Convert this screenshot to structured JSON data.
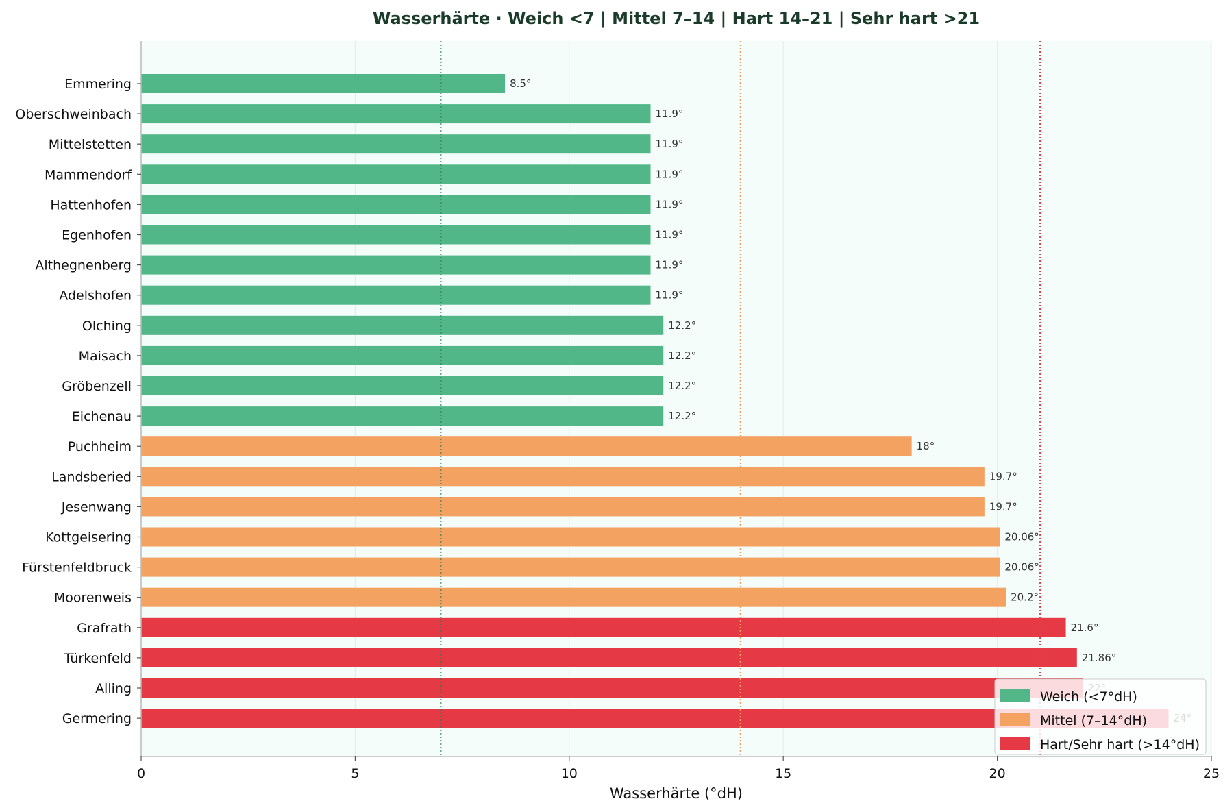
{
  "chart_data": {
    "type": "bar",
    "orientation": "horizontal",
    "title": "Wasserhärte · Weich <7 | Mittel 7–14 | Hart 14–21 | Sehr hart >21",
    "xlabel": "Wasserhärte (°dH)",
    "ylabel": "",
    "xlim": [
      0,
      25
    ],
    "xticks": [
      0,
      5,
      10,
      15,
      20,
      25
    ],
    "grid": "vertical",
    "legend_position": "bottom-right",
    "reference_lines": [
      {
        "x": 7,
        "color": "#2a7a5a"
      },
      {
        "x": 14,
        "color": "#f0a060"
      },
      {
        "x": 21,
        "color": "#e0404c"
      }
    ],
    "legend": [
      {
        "label": "Weich (<7°dH)",
        "color": "#52b788"
      },
      {
        "label": "Mittel (7–14°dH)",
        "color": "#f4a261"
      },
      {
        "label": "Hart/Sehr hart (>14°dH)",
        "color": "#e63946"
      }
    ],
    "categories": [
      "Emmering",
      "Oberschweinbach",
      "Mittelstetten",
      "Mammendorf",
      "Hattenhofen",
      "Egenhofen",
      "Althegnenberg",
      "Adelshofen",
      "Olching",
      "Maisach",
      "Gröbenzell",
      "Eichenau",
      "Puchheim",
      "Landsberied",
      "Jesenwang",
      "Kottgeisering",
      "Fürstenfeldbruck",
      "Moorenweis",
      "Grafrath",
      "Türkenfeld",
      "Alling",
      "Germering"
    ],
    "values": [
      8.5,
      11.9,
      11.9,
      11.9,
      11.9,
      11.9,
      11.9,
      11.9,
      12.2,
      12.2,
      12.2,
      12.2,
      18,
      19.7,
      19.7,
      20.06,
      20.06,
      20.2,
      21.6,
      21.86,
      22,
      24
    ],
    "value_labels": [
      "8.5°",
      "11.9°",
      "11.9°",
      "11.9°",
      "11.9°",
      "11.9°",
      "11.9°",
      "11.9°",
      "12.2°",
      "12.2°",
      "12.2°",
      "12.2°",
      "18°",
      "19.7°",
      "19.7°",
      "20.06°",
      "20.06°",
      "20.2°",
      "21.6°",
      "21.86°",
      "22°",
      "24°"
    ],
    "bar_groups": [
      0,
      0,
      0,
      0,
      0,
      0,
      0,
      0,
      0,
      0,
      0,
      0,
      1,
      1,
      1,
      1,
      1,
      1,
      2,
      2,
      2,
      2
    ]
  }
}
